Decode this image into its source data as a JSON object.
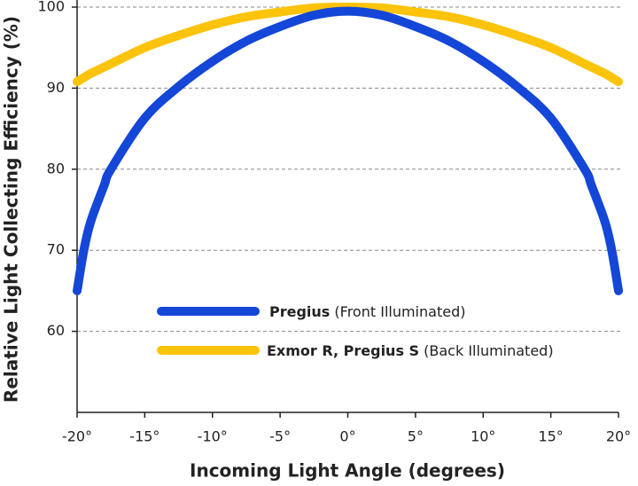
{
  "chart_data": {
    "type": "line",
    "xlabel": "Incoming Light Angle (degrees)",
    "ylabel": "Relative Light Collecting Efficiency (%)",
    "x": [
      -20,
      -19.5,
      -19,
      -18,
      -17.5,
      -15,
      -12.5,
      -10,
      -7.5,
      -5,
      -2.5,
      0,
      2.5,
      5,
      7.5,
      10,
      12.5,
      15,
      17.5,
      18,
      19,
      19.5,
      20
    ],
    "series": [
      {
        "name": "Pregius",
        "legend_note": "(Front Illuminated)",
        "color": "#1446d8",
        "values": [
          65,
          70,
          73.5,
          78,
          80,
          86.3,
          90.2,
          93.3,
          95.8,
          97.6,
          99,
          99.5,
          99,
          97.6,
          95.8,
          93.3,
          90.2,
          86.3,
          80,
          78,
          73.5,
          70,
          65
        ]
      },
      {
        "name": "Exmor R, Pregius S",
        "legend_note": "(Back Illuminated)",
        "color": "#fcc30b",
        "values": [
          90.8,
          91.3,
          91.8,
          92.6,
          93,
          95,
          96.5,
          97.8,
          98.8,
          99.4,
          99.9,
          100,
          99.9,
          99.4,
          98.8,
          97.8,
          96.5,
          95,
          93,
          92.6,
          91.8,
          91.3,
          90.8
        ]
      }
    ],
    "xlim": [
      -20,
      20
    ],
    "ylim": [
      50,
      100
    ],
    "xticks": [
      {
        "value": -20,
        "label": "-20°"
      },
      {
        "value": -15,
        "label": "-15°"
      },
      {
        "value": -10,
        "label": "-10°"
      },
      {
        "value": -5,
        "label": "-5°"
      },
      {
        "value": 0,
        "label": "0°"
      },
      {
        "value": 5,
        "label": "5°"
      },
      {
        "value": 10,
        "label": "10°"
      },
      {
        "value": 15,
        "label": "15°"
      },
      {
        "value": 20,
        "label": "20°"
      }
    ],
    "yticks": [
      60,
      70,
      80,
      90,
      100
    ],
    "grid": true
  }
}
